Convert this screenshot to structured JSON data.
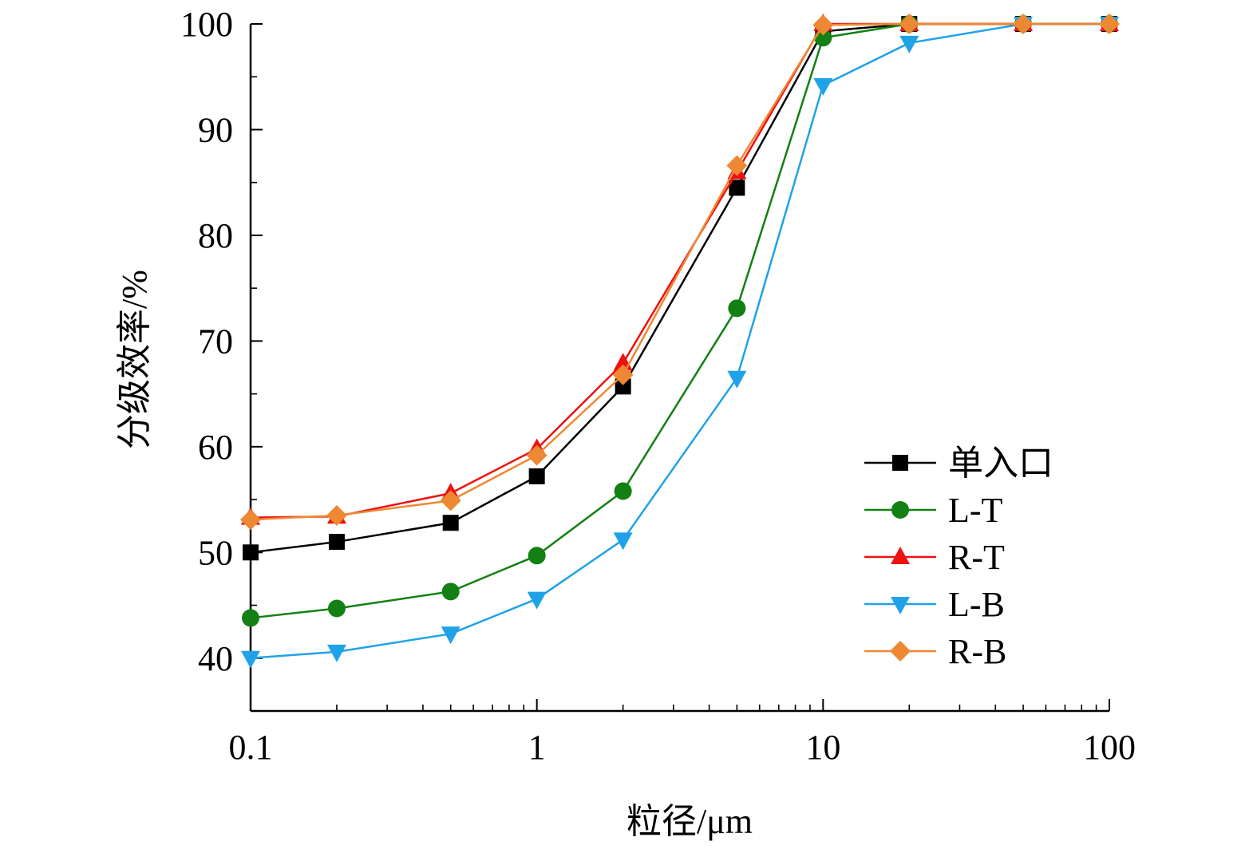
{
  "chart_data": {
    "type": "line",
    "xlabel": "粒径/μm",
    "ylabel": "分级效率/%",
    "xscale": "log",
    "xlim": [
      0.1,
      100
    ],
    "ylim": [
      35,
      100
    ],
    "x_tick_values": [
      0.1,
      1,
      10,
      100
    ],
    "x_tick_labels": [
      "0.1",
      "1",
      "10",
      "100"
    ],
    "y_tick_values": [
      40,
      50,
      60,
      70,
      80,
      90,
      100
    ],
    "y_tick_labels": [
      "40",
      "50",
      "60",
      "70",
      "80",
      "90",
      "100"
    ],
    "grid": false,
    "legend_position": "lower-right",
    "x": [
      0.1,
      0.2,
      0.5,
      1,
      2,
      5,
      10,
      20,
      50,
      100
    ],
    "series": [
      {
        "name": "单入口",
        "color": "#000000",
        "marker": "square",
        "values": [
          50.0,
          51.0,
          52.8,
          57.2,
          65.7,
          84.5,
          99.3,
          100,
          100,
          100
        ]
      },
      {
        "name": "L-T",
        "color": "#128012",
        "marker": "circle",
        "values": [
          43.8,
          44.7,
          46.3,
          49.7,
          55.8,
          73.1,
          98.7,
          100,
          100,
          100
        ]
      },
      {
        "name": "R-T",
        "color": "#ee1111",
        "marker": "triangle-up",
        "values": [
          53.3,
          53.4,
          55.6,
          59.8,
          67.9,
          86.0,
          100,
          100,
          100,
          100
        ]
      },
      {
        "name": "L-B",
        "color": "#1fa2e8",
        "marker": "triangle-down",
        "values": [
          40.0,
          40.6,
          42.3,
          45.6,
          51.2,
          66.5,
          94.2,
          98.2,
          100,
          100
        ]
      },
      {
        "name": "R-B",
        "color": "#ee8833",
        "marker": "diamond",
        "values": [
          53.1,
          53.5,
          54.9,
          59.2,
          66.8,
          86.6,
          99.9,
          100,
          100,
          100
        ]
      }
    ]
  }
}
